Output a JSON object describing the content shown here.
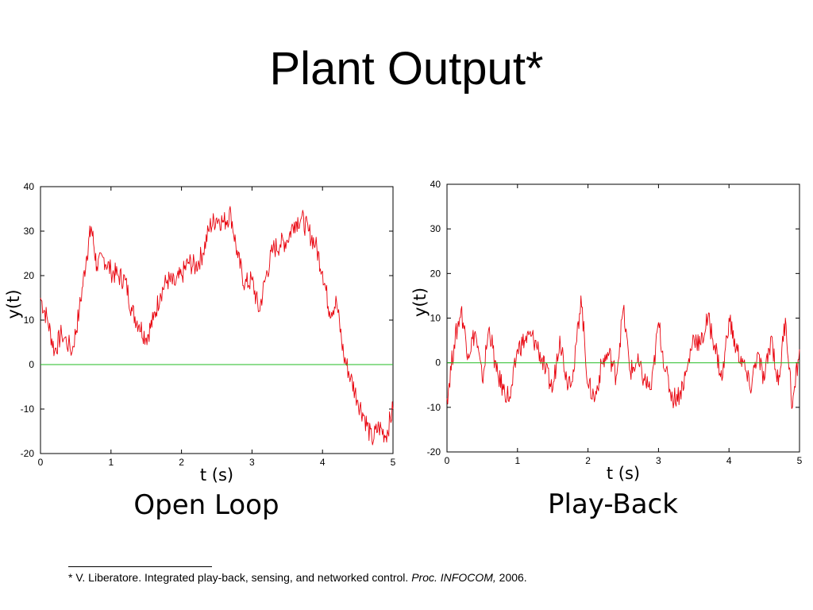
{
  "slide": {
    "title": "Plant Output*",
    "captions": [
      "Open Loop",
      "Play-Back"
    ]
  },
  "footnote": {
    "prefix": "* V. Liberatore.  Integrated play-back, sensing, and networked control. ",
    "venue": "Proc. INFOCOM,",
    "year": " 2006."
  },
  "chart_data": [
    {
      "type": "line",
      "title": "",
      "xlabel": "t (s)",
      "ylabel": "y(t)",
      "xlim": [
        0,
        5
      ],
      "ylim": [
        -20,
        40
      ],
      "xticks": [
        "0",
        "1",
        "2",
        "3",
        "4",
        "5"
      ],
      "yticks": [
        "-20",
        "-10",
        "0",
        "10",
        "20",
        "30",
        "40"
      ],
      "grid": false,
      "legend": "none",
      "series": [
        {
          "color": "#e8000b",
          "x": [
            0,
            0.1,
            0.2,
            0.3,
            0.45,
            0.55,
            0.65,
            0.72,
            0.8,
            0.9,
            1.0,
            1.1,
            1.2,
            1.3,
            1.4,
            1.5,
            1.6,
            1.7,
            1.8,
            1.9,
            2.0,
            2.1,
            2.2,
            2.3,
            2.4,
            2.5,
            2.6,
            2.7,
            2.8,
            2.9,
            3.0,
            3.1,
            3.2,
            3.3,
            3.4,
            3.5,
            3.6,
            3.7,
            3.8,
            3.9,
            4.0,
            4.1,
            4.2,
            4.3,
            4.4,
            4.5,
            4.6,
            4.7,
            4.8,
            4.9,
            5.0
          ],
          "y": [
            15,
            10,
            3,
            7,
            3,
            12,
            24,
            31,
            22,
            24,
            21,
            20,
            19,
            12,
            9,
            6,
            10,
            16,
            19,
            18,
            20,
            23,
            22,
            25,
            31,
            33,
            32,
            34,
            24,
            18,
            19,
            12,
            20,
            26,
            27,
            28,
            32,
            33,
            30,
            27,
            21,
            12,
            14,
            2,
            -3,
            -8,
            -12,
            -17,
            -14,
            -16,
            -10
          ]
        },
        {
          "color": "#22bb22",
          "x": [
            0,
            5
          ],
          "y": [
            0,
            0
          ]
        }
      ]
    },
    {
      "type": "line",
      "title": "",
      "xlabel": "t (s)",
      "ylabel": "y(t)",
      "xlim": [
        0,
        5
      ],
      "ylim": [
        -20,
        40
      ],
      "xticks": [
        "0",
        "1",
        "2",
        "3",
        "4",
        "5"
      ],
      "yticks": [
        "-20",
        "-10",
        "0",
        "10",
        "20",
        "30",
        "40"
      ],
      "grid": false,
      "legend": "none",
      "series": [
        {
          "color": "#e8000b",
          "x": [
            0,
            0.1,
            0.2,
            0.3,
            0.4,
            0.5,
            0.6,
            0.7,
            0.8,
            0.9,
            1.0,
            1.1,
            1.2,
            1.3,
            1.4,
            1.5,
            1.6,
            1.7,
            1.8,
            1.9,
            2.0,
            2.1,
            2.2,
            2.3,
            2.4,
            2.5,
            2.6,
            2.7,
            2.8,
            2.9,
            3.0,
            3.1,
            3.2,
            3.3,
            3.4,
            3.5,
            3.6,
            3.7,
            3.8,
            3.9,
            4.0,
            4.1,
            4.2,
            4.3,
            4.4,
            4.5,
            4.6,
            4.7,
            4.8,
            4.9,
            5.0
          ],
          "y": [
            -8,
            4,
            12,
            2,
            7,
            -4,
            8,
            -2,
            -6,
            -8,
            3,
            5,
            6,
            3,
            -2,
            -6,
            6,
            -4,
            -2,
            15,
            -5,
            -8,
            0,
            2,
            -3,
            12,
            -2,
            0,
            -4,
            -6,
            9,
            -2,
            -8,
            -7,
            -2,
            6,
            4,
            10,
            4,
            -4,
            10,
            3,
            0,
            -6,
            2,
            -4,
            6,
            -5,
            10,
            -10,
            3
          ]
        },
        {
          "color": "#22bb22",
          "x": [
            0,
            5
          ],
          "y": [
            0,
            0
          ]
        }
      ]
    }
  ]
}
